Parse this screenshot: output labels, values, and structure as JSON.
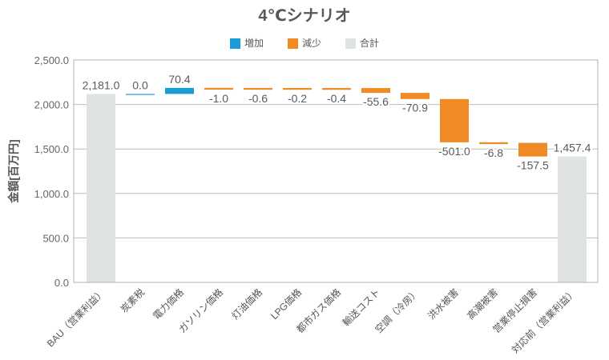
{
  "chart_data": {
    "type": "bar",
    "subtype": "waterfall",
    "title": "4℃シナリオ",
    "xlabel": "",
    "ylabel": "金額[百万円]",
    "ylim": [
      0,
      2500
    ],
    "grid": true,
    "legend_position": "top",
    "yticks": [
      "0.0",
      "500.0",
      "1,000.0",
      "1,500.0",
      "2,000.0",
      "2,500.0"
    ],
    "legend": [
      {
        "label": "増加",
        "color": "#1c9bd7"
      },
      {
        "label": "減少",
        "color": "#ef8a25"
      },
      {
        "label": "合計",
        "color": "#dfe3e3"
      }
    ],
    "categories": [
      "BAU（営業利益）",
      "炭素税",
      "電力価格",
      "ガソリン価格",
      "灯油価格",
      "LPG価格",
      "都市ガス価格",
      "輸送コスト",
      "空調（冷房）",
      "洪水被害",
      "高潮被害",
      "営業停止損害",
      "対応前（営業利益）"
    ],
    "values": [
      2181.0,
      0.0,
      70.4,
      -1.0,
      -0.6,
      -0.2,
      -0.4,
      -55.6,
      -70.9,
      -501.0,
      -6.8,
      -157.5,
      1457.4
    ],
    "labels": [
      "2,181.0",
      "0.0",
      "70.4",
      "-1.0",
      "-0.6",
      "-0.2",
      "-0.4",
      "-55.6",
      "-70.9",
      "-501.0",
      "-6.8",
      "-157.5",
      "1,457.4"
    ],
    "kinds": [
      "total",
      "increase",
      "increase",
      "decrease",
      "decrease",
      "decrease",
      "decrease",
      "decrease",
      "decrease",
      "decrease",
      "decrease",
      "decrease",
      "total"
    ]
  }
}
